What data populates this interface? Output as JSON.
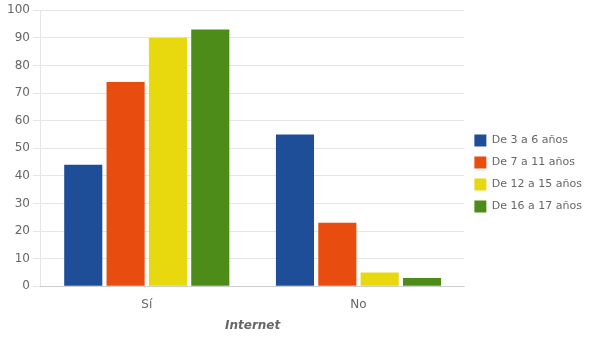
{
  "chart_data": {
    "type": "bar",
    "categories": [
      "Sí",
      "No"
    ],
    "series": [
      {
        "name": "De 3 a 6 años",
        "color": "#1F4E99",
        "values": [
          44,
          55
        ]
      },
      {
        "name": "De 7 a 11 años",
        "color": "#E84C0E",
        "values": [
          74,
          23
        ]
      },
      {
        "name": "De 12 a 15 años",
        "color": "#E8D80E",
        "values": [
          90,
          5
        ]
      },
      {
        "name": "De 16 a 17 años",
        "color": "#4E8C1A",
        "values": [
          93,
          3
        ]
      }
    ],
    "xlabel": "Internet",
    "ylim": [
      0,
      100
    ],
    "yticks": [
      0,
      10,
      20,
      30,
      40,
      50,
      60,
      70,
      80,
      90,
      100
    ],
    "grid": true,
    "legend": "right"
  }
}
